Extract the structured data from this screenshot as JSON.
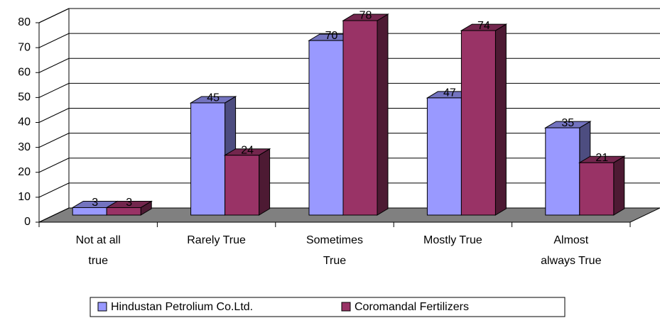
{
  "chart_data": {
    "type": "bar3d",
    "categories": [
      "Not at all true",
      "Rarely True",
      "Sometimes True",
      "Mostly True",
      "Almost always True"
    ],
    "series": [
      {
        "name": "Hindustan Petrolium Co.Ltd.",
        "color": "#9999ff",
        "values": [
          3,
          45,
          70,
          47,
          35
        ]
      },
      {
        "name": "Coromandal Fertilizers",
        "color": "#993366",
        "values": [
          3,
          24,
          78,
          74,
          21
        ]
      }
    ],
    "ylim": [
      0,
      80
    ],
    "yticks": [
      0,
      10,
      20,
      30,
      40,
      50,
      60,
      70,
      80
    ],
    "grid": true,
    "legend": "bottom"
  }
}
